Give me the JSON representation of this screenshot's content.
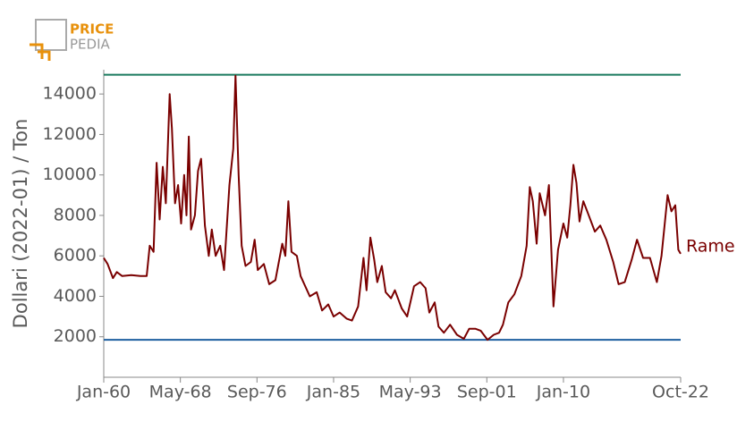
{
  "logo": {
    "line1": "PRICE",
    "line2": "PEDIA"
  },
  "chart_data": {
    "type": "line",
    "y_label": "Dollari (2022-01) / Ton",
    "xlim": [
      "1960-01",
      "2022-10"
    ],
    "xticks": [
      {
        "value": "1960-01",
        "label": "Jan-60"
      },
      {
        "value": "1968-05",
        "label": "May-68"
      },
      {
        "value": "1976-09",
        "label": "Sep-76"
      },
      {
        "value": "1985-01",
        "label": "Jan-85"
      },
      {
        "value": "1993-05",
        "label": "May-93"
      },
      {
        "value": "2001-09",
        "label": "Sep-01"
      },
      {
        "value": "2010-01",
        "label": "Jan-10"
      },
      {
        "value": "2022-10",
        "label": "Oct-22"
      }
    ],
    "ylim": [
      0,
      15200
    ],
    "yticks": [
      2000,
      4000,
      6000,
      8000,
      10000,
      12000,
      14000
    ],
    "reference_lines": [
      {
        "value": 14950,
        "color": "#1a7a5e"
      },
      {
        "value": 1850,
        "color": "#1f5fa0"
      }
    ],
    "x": [
      "1960-01",
      "1960-06",
      "1961-01",
      "1961-06",
      "1962-01",
      "1963-01",
      "1964-01",
      "1964-09",
      "1965-01",
      "1965-06",
      "1965-10",
      "1966-02",
      "1966-06",
      "1966-10",
      "1967-03",
      "1967-06",
      "1967-10",
      "1968-02",
      "1968-06",
      "1968-10",
      "1969-01",
      "1969-04",
      "1969-07",
      "1969-12",
      "1970-04",
      "1970-08",
      "1971-01",
      "1971-06",
      "1971-10",
      "1972-03",
      "1972-09",
      "1973-02",
      "1973-09",
      "1974-02",
      "1974-05",
      "1974-09",
      "1975-01",
      "1975-06",
      "1976-01",
      "1976-06",
      "1976-10",
      "1977-06",
      "1978-01",
      "1978-09",
      "1979-06",
      "1979-10",
      "1980-02",
      "1980-06",
      "1981-01",
      "1981-06",
      "1982-06",
      "1983-03",
      "1983-10",
      "1984-06",
      "1985-01",
      "1985-09",
      "1986-06",
      "1987-01",
      "1987-09",
      "1988-04",
      "1988-08",
      "1989-01",
      "1989-06",
      "1989-10",
      "1990-04",
      "1990-09",
      "1991-04",
      "1991-09",
      "1992-06",
      "1993-01",
      "1993-10",
      "1994-06",
      "1995-01",
      "1995-06",
      "1996-01",
      "1996-06",
      "1997-01",
      "1997-09",
      "1998-06",
      "1999-03",
      "1999-10",
      "2000-06",
      "2001-01",
      "2001-10",
      "2002-06",
      "2003-01",
      "2003-06",
      "2004-01",
      "2004-09",
      "2005-06",
      "2006-01",
      "2006-05",
      "2006-09",
      "2007-02",
      "2007-06",
      "2008-01",
      "2008-06",
      "2008-12",
      "2009-06",
      "2010-01",
      "2010-06",
      "2010-10",
      "2011-02",
      "2011-06",
      "2011-10",
      "2012-03",
      "2012-09",
      "2013-06",
      "2014-01",
      "2014-09",
      "2015-06",
      "2016-01",
      "2016-09",
      "2017-06",
      "2018-01",
      "2018-09",
      "2019-06",
      "2020-03",
      "2020-09",
      "2021-05",
      "2021-10",
      "2022-03",
      "2022-07",
      "2022-10"
    ],
    "series": [
      {
        "name": "Rame",
        "color": "#7a0000",
        "values": [
          5900,
          5600,
          4900,
          5200,
          5000,
          5050,
          5000,
          5000,
          6500,
          6200,
          10600,
          7800,
          10400,
          8600,
          14000,
          12300,
          8600,
          9500,
          7600,
          10000,
          8000,
          11900,
          7300,
          8000,
          10200,
          10800,
          7500,
          6000,
          7300,
          6000,
          6500,
          5300,
          9500,
          11300,
          14900,
          10000,
          6500,
          5500,
          5700,
          6800,
          5300,
          5600,
          4600,
          4800,
          6600,
          6000,
          8700,
          6200,
          6000,
          5000,
          4000,
          4200,
          3300,
          3600,
          3000,
          3200,
          2900,
          2800,
          3500,
          5900,
          4300,
          6900,
          5800,
          4700,
          5500,
          4200,
          3900,
          4300,
          3400,
          3000,
          4500,
          4700,
          4400,
          3200,
          3700,
          2500,
          2200,
          2600,
          2100,
          1900,
          2400,
          2400,
          2300,
          1850,
          2100,
          2200,
          2600,
          3700,
          4100,
          5000,
          6500,
          9400,
          8700,
          6600,
          9100,
          8000,
          9500,
          3500,
          6300,
          7600,
          6900,
          8500,
          10500,
          9600,
          7700,
          8700,
          8100,
          7200,
          7500,
          6800,
          5700,
          4600,
          4700,
          5800,
          6800,
          5900,
          5900,
          4700,
          6000,
          9000,
          8200,
          8500,
          6300,
          6100
        ]
      }
    ]
  }
}
